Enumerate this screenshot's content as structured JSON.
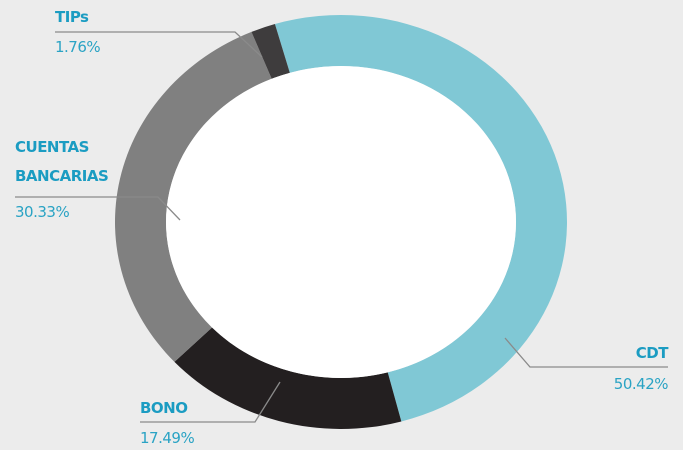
{
  "chart_data": {
    "type": "donut",
    "categories": [
      "CDT",
      "BONO",
      "CUENTAS BANCARIAS",
      "TIPs"
    ],
    "values": [
      50.42,
      17.49,
      30.33,
      1.76
    ],
    "value_labels": [
      "50.42%",
      "17.49%",
      "30.33%",
      "1.76%"
    ],
    "colors": [
      "#80c8d5",
      "#231f20",
      "#808080",
      "#3e3c3d"
    ]
  }
}
